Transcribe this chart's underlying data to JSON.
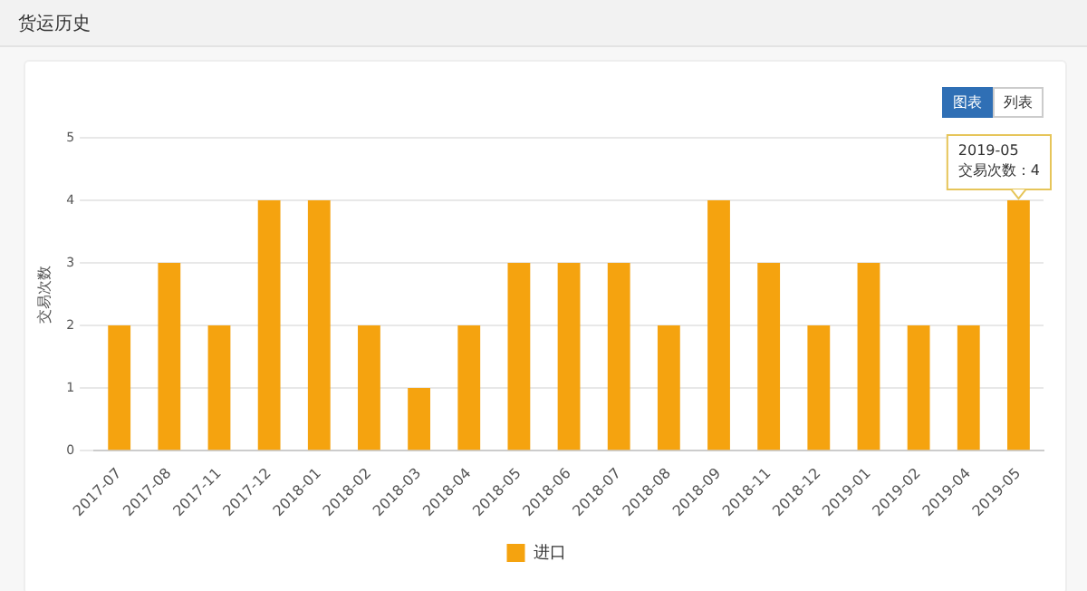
{
  "chart_data": {
    "type": "bar",
    "title": "货运历史",
    "ylabel": "交易次数",
    "categories": [
      "2017-07",
      "2017-08",
      "2017-11",
      "2017-12",
      "2018-01",
      "2018-02",
      "2018-03",
      "2018-04",
      "2018-05",
      "2018-06",
      "2018-07",
      "2018-08",
      "2018-09",
      "2018-11",
      "2018-12",
      "2019-01",
      "2019-02",
      "2019-04",
      "2019-05"
    ],
    "series": [
      {
        "name": "进口",
        "color": "#f5a30f",
        "values": [
          2,
          3,
          2,
          4,
          4,
          2,
          1,
          2,
          3,
          3,
          3,
          2,
          4,
          3,
          2,
          3,
          2,
          2,
          4
        ]
      }
    ],
    "ylim": [
      0,
      5
    ],
    "yticks": [
      0,
      1,
      2,
      3,
      4,
      5
    ],
    "grid": "y",
    "legend": "bottom",
    "annotations": [
      "图表",
      "列表",
      {
        "text": "2019-05\n交易次数：4",
        "x": "2019-05",
        "y": 4
      }
    ]
  }
}
